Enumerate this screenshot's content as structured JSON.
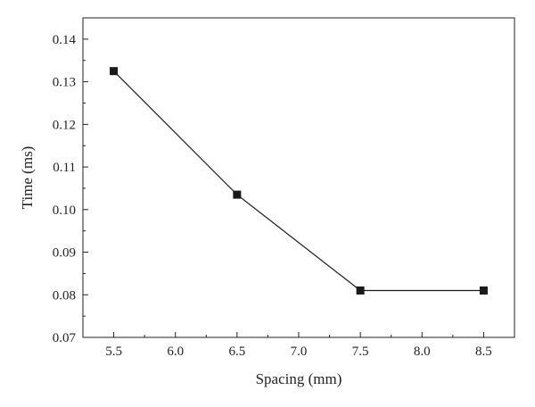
{
  "chart_data": {
    "type": "line",
    "title": "",
    "xlabel": "Spacing (mm)",
    "ylabel": "Time (ms)",
    "xlim": [
      5.25,
      8.75
    ],
    "ylim": [
      0.07,
      0.145
    ],
    "x_ticks": [
      5.5,
      6.0,
      6.5,
      7.0,
      7.5,
      8.0,
      8.5
    ],
    "x_tick_labels": [
      "5.5",
      "6.0",
      "6.5",
      "7.0",
      "7.5",
      "8.0",
      "8.5"
    ],
    "y_ticks": [
      0.07,
      0.08,
      0.09,
      0.1,
      0.11,
      0.12,
      0.13,
      0.14
    ],
    "y_tick_labels": [
      "0.07",
      "0.08",
      "0.09",
      "0.10",
      "0.11",
      "0.12",
      "0.13",
      "0.14"
    ],
    "grid": false,
    "legend": "none",
    "series": [
      {
        "x": [
          5.5,
          6.5,
          7.5,
          8.5
        ],
        "y": [
          0.1325,
          0.1035,
          0.081,
          0.081
        ],
        "marker": "square",
        "color": "#1a1a1a"
      }
    ]
  }
}
